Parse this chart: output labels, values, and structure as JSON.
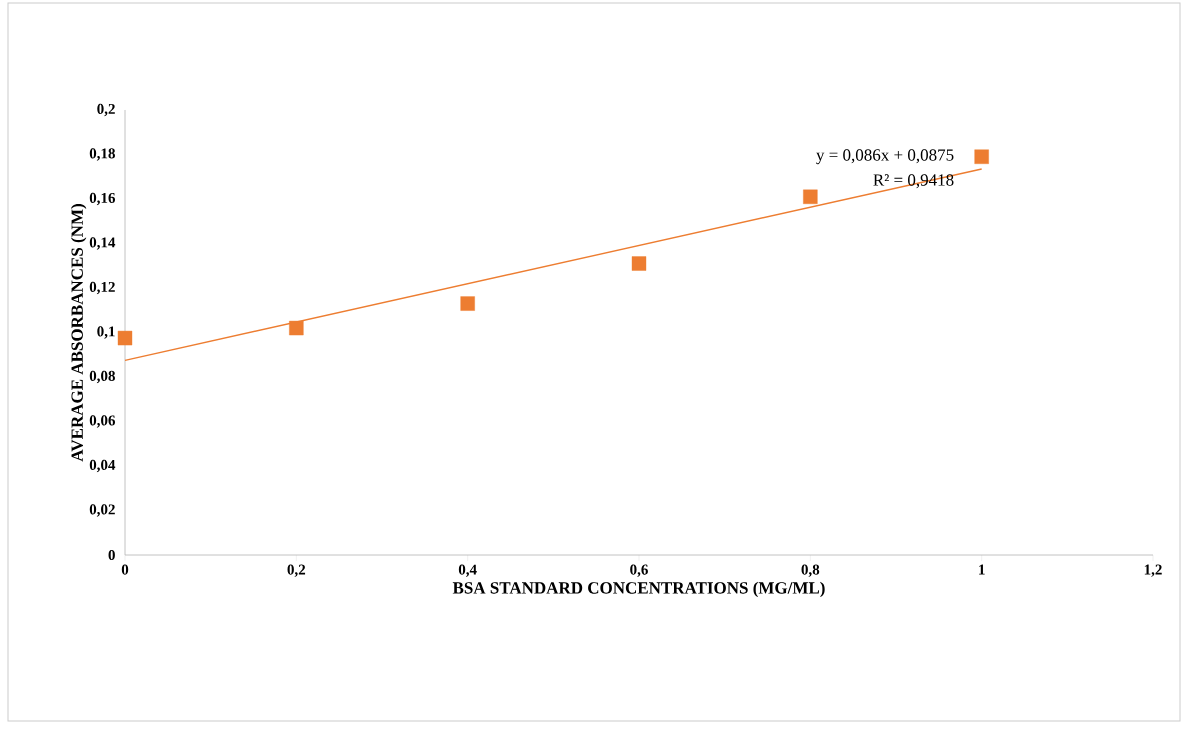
{
  "chart_data": {
    "type": "scatter",
    "xlabel": "BSA STANDARD CONCENTRATIONS (MG/ML)",
    "ylabel": "AVERAGE ABSORBANCES (NM)",
    "xlim": [
      0,
      1.2
    ],
    "ylim": [
      0,
      0.2
    ],
    "xticks": [
      0,
      {
        "value": 0.2,
        "label": "0,2"
      },
      {
        "value": 0.4,
        "label": "0,4"
      },
      {
        "value": 0.6,
        "label": "0,6"
      },
      {
        "value": 0.8,
        "label": "0,8"
      },
      1,
      {
        "value": 1.2,
        "label": "1,2"
      }
    ],
    "yticks": [
      0,
      {
        "value": 0.02,
        "label": "0,02"
      },
      {
        "value": 0.04,
        "label": "0,04"
      },
      {
        "value": 0.06,
        "label": "0,06"
      },
      {
        "value": 0.08,
        "label": "0,08"
      },
      {
        "value": 0.1,
        "label": "0,1"
      },
      {
        "value": 0.12,
        "label": "0,12"
      },
      {
        "value": 0.14,
        "label": "0,14"
      },
      {
        "value": 0.16,
        "label": "0,16"
      },
      {
        "value": 0.18,
        "label": "0,18"
      },
      {
        "value": 0.2,
        "label": "0,2"
      }
    ],
    "x": [
      0,
      0.2,
      0.4,
      0.6,
      0.8,
      1
    ],
    "series": [
      {
        "color": "#ed7d31",
        "marker": "square",
        "values": [
          0.0975,
          0.102,
          0.113,
          0.131,
          0.161,
          0.179
        ]
      },
      {
        "type": "line",
        "color": "#ed7d31",
        "marker": "none",
        "line_style": "solid",
        "x": [
          0,
          1
        ],
        "values": [
          0.0875,
          0.1735
        ]
      }
    ],
    "annotations": [
      "y = 0,086x + 0,0875",
      "R² = 0,9418"
    ],
    "grid": false,
    "legend": false
  }
}
